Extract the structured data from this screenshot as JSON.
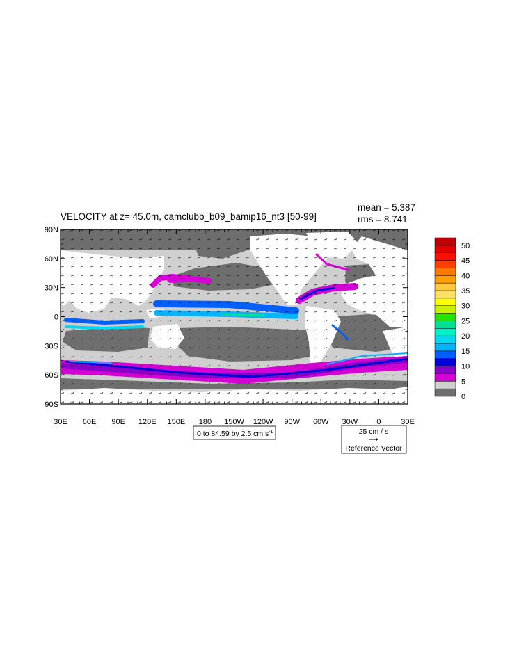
{
  "title": "VELOCITY at z=  45.0m, camclubb_b09_bamip16_nt3 [50-99]",
  "stats": {
    "mean": "mean = 5.387",
    "rms": "rms = 8.741"
  },
  "contour_info": {
    "text": "0 to 84.59 by 2.5 cm s",
    "superscript": "-1"
  },
  "reference_vector": {
    "magnitude": "25 cm / s",
    "label": "Reference Vector"
  },
  "colors": {
    "land": "#ffffff",
    "band_0_2_5": "#6e6e6e",
    "band_2_5_5": "#cfcfcf",
    "band_5_7_5": "#d400d4",
    "band_7_5_10": "#8a00c8",
    "band_10_12_5": "#0000d8",
    "band_12_5_15": "#0060ff",
    "band_15_17_5": "#00b4ff",
    "band_17_5_20": "#00d8f0",
    "band_20_22_5": "#00f0c8",
    "band_22_5_25": "#00e090",
    "band_25_27_5": "#28e000",
    "band_27_5_30": "#c8f000",
    "band_30_32_5": "#ffff00",
    "band_32_5_35": "#ffe060",
    "band_35_37_5": "#ffc840",
    "band_37_5_40": "#ffa000",
    "band_40_42_5": "#ff7800",
    "band_42_5_45": "#ff4000",
    "band_45_47_5": "#ff1000",
    "band_47_5_50": "#e00000",
    "band_50_up": "#c00000"
  },
  "chart_data": {
    "type": "heatmap",
    "title": "VELOCITY at z=  45.0m, camclubb_b09_bamip16_nt3 [50-99]",
    "units": "cm s-1",
    "xlim": [
      30,
      390
    ],
    "ylim": [
      -90,
      90
    ],
    "x_ticks": [
      {
        "value": 30,
        "label": "30E"
      },
      {
        "value": 60,
        "label": "60E"
      },
      {
        "value": 90,
        "label": "90E"
      },
      {
        "value": 120,
        "label": "120E"
      },
      {
        "value": 150,
        "label": "150E"
      },
      {
        "value": 180,
        "label": "180"
      },
      {
        "value": 210,
        "label": "150W"
      },
      {
        "value": 240,
        "label": "120W"
      },
      {
        "value": 270,
        "label": "90W"
      },
      {
        "value": 300,
        "label": "60W"
      },
      {
        "value": 330,
        "label": "30W"
      },
      {
        "value": 360,
        "label": "0"
      },
      {
        "value": 390,
        "label": "30E"
      }
    ],
    "y_ticks": [
      {
        "value": 90,
        "label": "90N"
      },
      {
        "value": 60,
        "label": "60N"
      },
      {
        "value": 30,
        "label": "30N"
      },
      {
        "value": 0,
        "label": "0"
      },
      {
        "value": -30,
        "label": "30S"
      },
      {
        "value": -60,
        "label": "60S"
      },
      {
        "value": -90,
        "label": "90S"
      }
    ],
    "colorbar": {
      "labels": [
        "0",
        "5",
        "10",
        "15",
        "20",
        "25",
        "30",
        "35",
        "40",
        "45",
        "50"
      ],
      "min": 0,
      "max": 50,
      "step": 2.5
    },
    "contour_min": 0,
    "contour_max": 84.59,
    "contour_interval": 2.5,
    "mean": 5.387,
    "rms": 8.741,
    "reference_vector_magnitude": 25
  }
}
